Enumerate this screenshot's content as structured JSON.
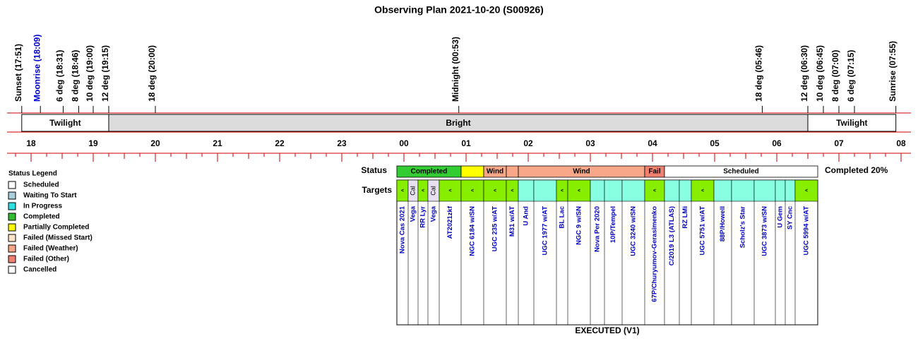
{
  "title": "Observing Plan 2021-10-20 (S00926)",
  "events": [
    {
      "label": "Sunset (17:51)",
      "color": "#000000"
    },
    {
      "label": "Moonrise (18:09)",
      "color": "#0000cc"
    },
    {
      "label": "6 deg (18:31)",
      "color": "#000000"
    },
    {
      "label": "8 deg (18:46)",
      "color": "#000000"
    },
    {
      "label": "10 deg (19:00)",
      "color": "#000000"
    },
    {
      "label": "12 deg (19:15)",
      "color": "#000000"
    },
    {
      "label": "18 deg (20:00)",
      "color": "#000000"
    },
    {
      "label": "Midnight (00:53)",
      "color": "#000000"
    },
    {
      "label": "18 deg (05:46)",
      "color": "#000000"
    },
    {
      "label": "12 deg (06:30)",
      "color": "#000000"
    },
    {
      "label": "10 deg (06:45)",
      "color": "#000000"
    },
    {
      "label": "8 deg (07:00)",
      "color": "#000000"
    },
    {
      "label": "6 deg (07:15)",
      "color": "#000000"
    },
    {
      "label": "Sunrise (07:55)",
      "color": "#000000"
    }
  ],
  "bands": [
    {
      "label": "Twilight",
      "color": "#ffffff"
    },
    {
      "label": "Bright",
      "color": "#dcdcdc"
    },
    {
      "label": "Twilight",
      "color": "#ffffff"
    }
  ],
  "hours": [
    "18",
    "19",
    "20",
    "21",
    "22",
    "23",
    "00",
    "01",
    "02",
    "03",
    "04",
    "05",
    "06",
    "07",
    "08"
  ],
  "legend": {
    "title": "Status Legend",
    "items": [
      {
        "label": "Scheduled",
        "color": "#ffffff"
      },
      {
        "label": "Waiting To Start",
        "color": "#a8d0dc"
      },
      {
        "label": "In Progress",
        "color": "#30e0e0"
      },
      {
        "label": "Completed",
        "color": "#33bb33"
      },
      {
        "label": "Partially Completed",
        "color": "#ffff00"
      },
      {
        "label": "Failed (Missed Start)",
        "color": "#ffe4c8"
      },
      {
        "label": "Failed (Weather)",
        "color": "#f8a888"
      },
      {
        "label": "Failed (Other)",
        "color": "#f08070"
      },
      {
        "label": "Cancelled",
        "color": "#ffffff"
      }
    ]
  },
  "status": {
    "label": "Status",
    "segments": [
      {
        "text": "Completed",
        "color": "#33cc33"
      },
      {
        "color": "#ffff00"
      },
      {
        "text": "Wind",
        "color": "#f8a888"
      },
      {
        "color": "#f8a888"
      },
      {
        "text": "Wind",
        "color": "#f8a888"
      },
      {
        "text": "Fail",
        "color": "#f08070"
      },
      {
        "text": "Scheduled",
        "color": "#ffffff"
      }
    ]
  },
  "summary": "Completed 20%",
  "targets": {
    "label": "Targets",
    "items": [
      {
        "name": "Nova Cas 2021",
        "color": "#88ee00",
        "mark": "<"
      },
      {
        "name": "Vega",
        "color": "#e6e0f0",
        "mark": "Cal"
      },
      {
        "name": "RR Lyr",
        "color": "#88ee00",
        "mark": "<"
      },
      {
        "name": "Vega",
        "color": "#e6e0f0",
        "mark": "Cal"
      },
      {
        "name": "AT2021zkf",
        "color": "#88ee00",
        "mark": "<"
      },
      {
        "name": "NGC 6184 w/SN",
        "color": "#88ee00",
        "mark": "<"
      },
      {
        "name": "UGC 235 w/AT",
        "color": "#88ee00",
        "mark": "<"
      },
      {
        "name": "M31 w/AT",
        "color": "#88ee00",
        "mark": "<"
      },
      {
        "name": "U And",
        "color": "#88ffe0"
      },
      {
        "name": "UGC 1977 w/AT",
        "color": "#88ffe0"
      },
      {
        "name": "BL Lac",
        "color": "#88ee00",
        "mark": "<"
      },
      {
        "name": "NGC 9 w/SN",
        "color": "#88ee00",
        "mark": "<"
      },
      {
        "name": "Nova Per 2020",
        "color": "#88ffe0"
      },
      {
        "name": "10P/Tempel",
        "color": "#88ffe0"
      },
      {
        "name": "UGC 3240 w/SN",
        "color": "#88ffe0"
      },
      {
        "name": "67P/Churyumov-Gerasimenko",
        "color": "#88ee00",
        "mark": "<"
      },
      {
        "name": "C/2019 L3 (ATLAS)",
        "color": "#88ffe0"
      },
      {
        "name": "RZ LMi",
        "color": "#88ffe0"
      },
      {
        "name": "UGC 5751 w/AT",
        "color": "#88ee00",
        "mark": "<"
      },
      {
        "name": "88P/Howell",
        "color": "#88ffe0"
      },
      {
        "name": "Scholz's Star",
        "color": "#88ffe0"
      },
      {
        "name": "UGC 3873 w/SN",
        "color": "#88ffe0"
      },
      {
        "name": "U Gem",
        "color": "#88ffe0"
      },
      {
        "name": "SY Cnc",
        "color": "#88ffe0"
      },
      {
        "name": "UGC 5994 w/AT",
        "color": "#88ee00",
        "mark": "<"
      }
    ]
  },
  "footer": "EXECUTED (V1)"
}
